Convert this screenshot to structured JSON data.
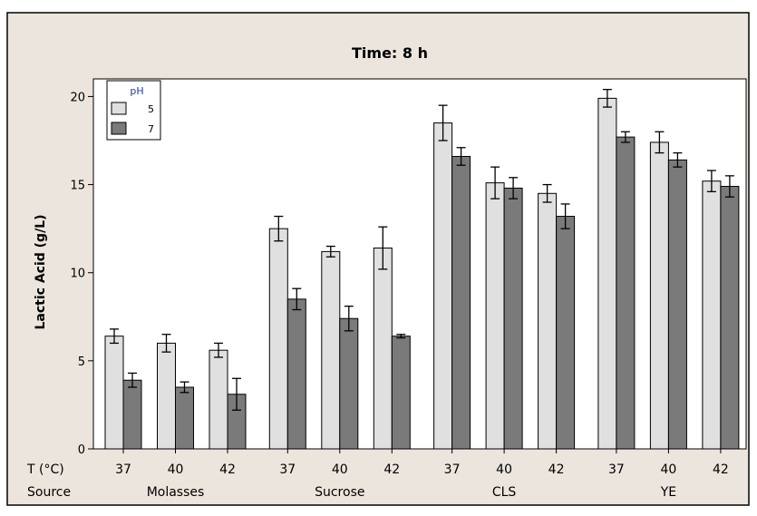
{
  "chart_data": {
    "type": "bar",
    "title": "Time: 8 h",
    "ylabel": "Lactic Acid (g/L)",
    "ylim": [
      0,
      21
    ],
    "yticks": [
      0,
      5,
      10,
      15,
      20
    ],
    "ytick_labels": [
      "0",
      "5",
      "10",
      "15",
      "20"
    ],
    "row_labels": {
      "temperature": "T (°C)",
      "source": "Source"
    },
    "legend": {
      "title": "pH",
      "position": "top-left",
      "entries": [
        "5",
        "7"
      ]
    },
    "groups": [
      {
        "source": "Molasses",
        "temps": [
          "37",
          "40",
          "42"
        ]
      },
      {
        "source": "Sucrose",
        "temps": [
          "37",
          "40",
          "42"
        ]
      },
      {
        "source": "CLS",
        "temps": [
          "37",
          "40",
          "42"
        ]
      },
      {
        "source": "YE",
        "temps": [
          "37",
          "40",
          "42"
        ]
      }
    ],
    "series": [
      {
        "name": "5",
        "color": "#e0e0e0",
        "values": [
          6.4,
          6.0,
          5.6,
          12.5,
          11.2,
          11.4,
          18.5,
          15.1,
          14.5,
          19.9,
          17.4,
          15.2
        ],
        "errors": [
          0.4,
          0.5,
          0.4,
          0.7,
          0.3,
          1.2,
          1.0,
          0.9,
          0.5,
          0.5,
          0.6,
          0.6
        ]
      },
      {
        "name": "7",
        "color": "#7a7a7a",
        "values": [
          3.9,
          3.5,
          3.1,
          8.5,
          7.4,
          6.4,
          16.6,
          14.8,
          13.2,
          17.7,
          16.4,
          14.9
        ],
        "errors": [
          0.4,
          0.3,
          0.9,
          0.6,
          0.7,
          0.1,
          0.5,
          0.6,
          0.7,
          0.3,
          0.4,
          0.6
        ]
      }
    ],
    "grid": false
  },
  "colors": {
    "background": "#ebe5dd",
    "bar_light": "#e0e0e0",
    "bar_dark": "#7a7a7a",
    "frame": "#000000",
    "legend_title": "#1f3f9a"
  }
}
